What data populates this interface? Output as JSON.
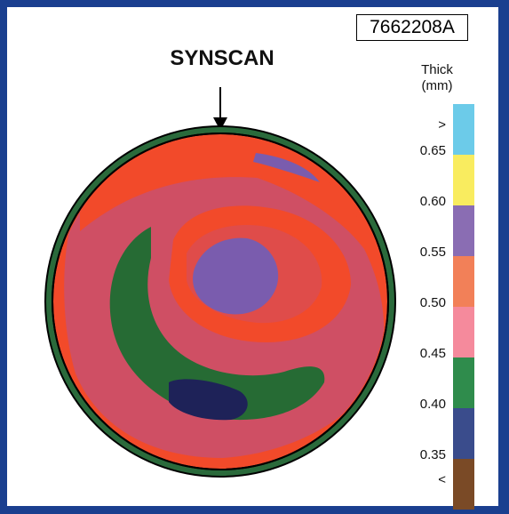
{
  "figure_id": "7662208A",
  "scan_label": "SYNSCAN",
  "legend": {
    "title_line1": "Thick",
    "title_line2": "(mm)",
    "labels": [
      ">",
      "0.65",
      "0.60",
      "0.55",
      "0.50",
      "0.45",
      "0.40",
      "0.35",
      "<"
    ],
    "colors": [
      "#6ccbe9",
      "#f9ec5f",
      "#8a6db3",
      "#f28058",
      "#f58a9c",
      "#2f8c4c",
      "#3a4c8c",
      "#7a4a26"
    ]
  },
  "map_colors": {
    "outer_ring": "#2a6a3b",
    "red": "#f24a2a",
    "pink": "#cf4f64",
    "green": "#266b34",
    "purple": "#7a5cae",
    "navy": "#1e2258"
  }
}
